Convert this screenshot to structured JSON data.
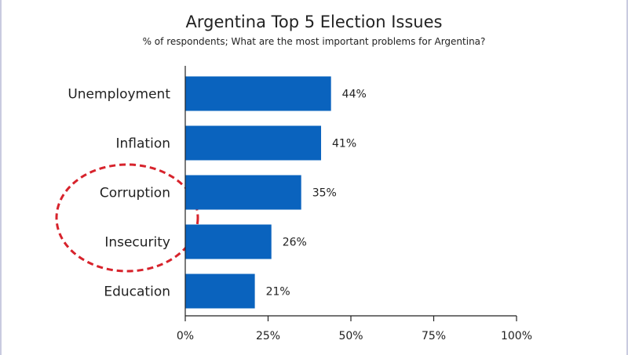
{
  "chart_data": {
    "type": "bar",
    "orientation": "horizontal",
    "title": "Argentina Top 5 Election Issues",
    "subtitle": "% of respondents; What are the most important problems for Argentina?",
    "categories": [
      "Unemployment",
      "Inflation",
      "Corruption",
      "Insecurity",
      "Education"
    ],
    "values": [
      44,
      41,
      35,
      26,
      21
    ],
    "value_labels": [
      "44%",
      "41%",
      "35%",
      "26%",
      "21%"
    ],
    "xlabel": "",
    "ylabel": "",
    "xlim": [
      0,
      100
    ],
    "x_ticks": [
      0,
      25,
      50,
      75,
      100
    ],
    "x_tick_labels": [
      "0%",
      "25%",
      "50%",
      "75%",
      "100%"
    ],
    "grid": false,
    "bar_color": "#0a63be",
    "annotation": {
      "shape": "dashed-ellipse",
      "color": "#d7232c",
      "highlights": [
        "Corruption",
        "Insecurity"
      ]
    }
  }
}
